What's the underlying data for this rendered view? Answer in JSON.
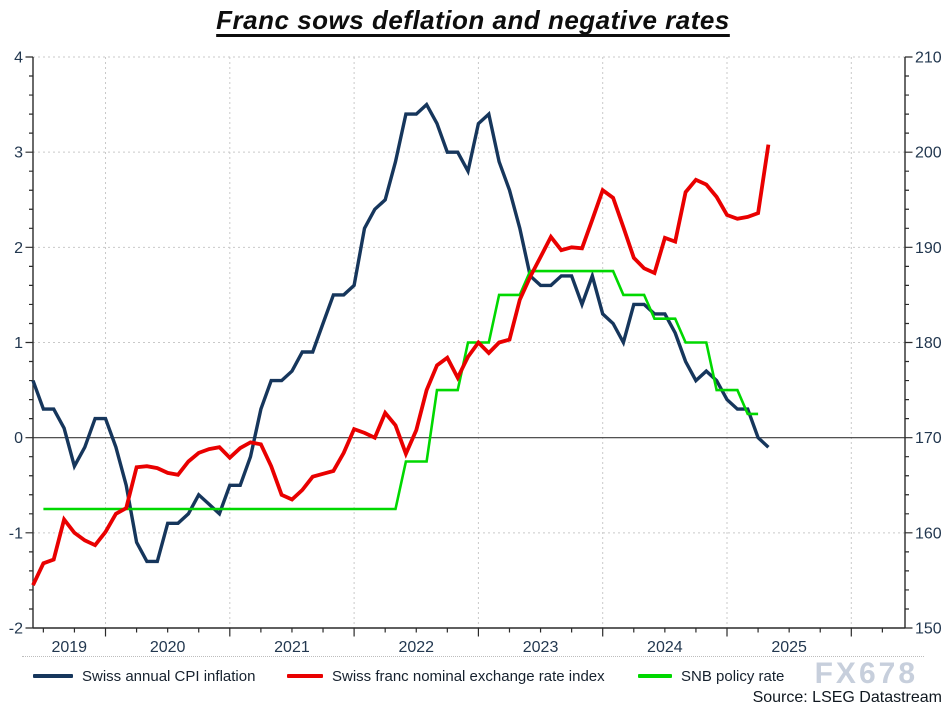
{
  "title": "Franc sows deflation and negative rates",
  "watermark": "FX678",
  "source_note": "Source: LSEG Datastream",
  "colors": {
    "cpi_line": "#16365c",
    "fx_line": "#e90000",
    "snb_line": "#00d800",
    "grid": "#c9c9c9",
    "axis": "#2a2a2a",
    "zero_line": "#3a3a3a",
    "tick_text": "#22374f",
    "watermark_text": "#c7cfdc"
  },
  "legend": [
    {
      "label": "Swiss annual CPI inflation",
      "color": "#16365c"
    },
    {
      "label": "Swiss franc nominal exchange rate index",
      "color": "#e90000"
    },
    {
      "label": "SNB policy rate",
      "color": "#00d800"
    }
  ],
  "chart_data": {
    "type": "line",
    "title": "Franc sows deflation and negative rates",
    "x_axis": {
      "year_labels": [
        "2019",
        "2020",
        "2021",
        "2022",
        "2023",
        "2024",
        "2025"
      ],
      "domain_note": "monthly data Jun 2019 - May 2025, axis extends to mid 2026",
      "grid": true
    },
    "left_axis": {
      "min": -2,
      "max": 4,
      "tick_labels": [
        "4",
        "3",
        "2",
        "1",
        "0",
        "-1",
        "-2"
      ],
      "minor_step": 0.2
    },
    "right_axis": {
      "min": 150,
      "max": 210,
      "tick_labels": [
        "210",
        "200",
        "190",
        "180",
        "170",
        "160",
        "150"
      ],
      "minor_step": 2
    },
    "months": [
      "2019-06",
      "2019-07",
      "2019-08",
      "2019-09",
      "2019-10",
      "2019-11",
      "2019-12",
      "2020-01",
      "2020-02",
      "2020-03",
      "2020-04",
      "2020-05",
      "2020-06",
      "2020-07",
      "2020-08",
      "2020-09",
      "2020-10",
      "2020-11",
      "2020-12",
      "2021-01",
      "2021-02",
      "2021-03",
      "2021-04",
      "2021-05",
      "2021-06",
      "2021-07",
      "2021-08",
      "2021-09",
      "2021-10",
      "2021-11",
      "2021-12",
      "2022-01",
      "2022-02",
      "2022-03",
      "2022-04",
      "2022-05",
      "2022-06",
      "2022-07",
      "2022-08",
      "2022-09",
      "2022-10",
      "2022-11",
      "2022-12",
      "2023-01",
      "2023-02",
      "2023-03",
      "2023-04",
      "2023-05",
      "2023-06",
      "2023-07",
      "2023-08",
      "2023-09",
      "2023-10",
      "2023-11",
      "2023-12",
      "2024-01",
      "2024-02",
      "2024-03",
      "2024-04",
      "2024-05",
      "2024-06",
      "2024-07",
      "2024-08",
      "2024-09",
      "2024-10",
      "2024-11",
      "2024-12",
      "2025-01",
      "2025-02",
      "2025-03",
      "2025-04",
      "2025-05"
    ],
    "series": [
      {
        "name": "Swiss annual CPI inflation",
        "axis": "left",
        "color": "#16365c",
        "width": 3.4,
        "values": [
          0.6,
          0.3,
          0.3,
          0.1,
          -0.3,
          -0.1,
          0.2,
          0.2,
          -0.1,
          -0.5,
          -1.1,
          -1.3,
          -1.3,
          -0.9,
          -0.9,
          -0.8,
          -0.6,
          -0.7,
          -0.8,
          -0.5,
          -0.5,
          -0.2,
          0.3,
          0.6,
          0.6,
          0.7,
          0.9,
          0.9,
          1.2,
          1.5,
          1.5,
          1.6,
          2.2,
          2.4,
          2.5,
          2.9,
          3.4,
          3.4,
          3.5,
          3.3,
          3.0,
          3.0,
          2.8,
          3.3,
          3.4,
          2.9,
          2.6,
          2.2,
          1.7,
          1.6,
          1.6,
          1.7,
          1.7,
          1.4,
          1.7,
          1.3,
          1.2,
          1.0,
          1.4,
          1.4,
          1.3,
          1.3,
          1.1,
          0.8,
          0.6,
          0.7,
          0.6,
          0.4,
          0.3,
          0.3,
          0.0,
          -0.1
        ]
      },
      {
        "name": "SNB policy rate",
        "axis": "left",
        "color": "#00d800",
        "width": 2.6,
        "values": [
          null,
          -0.75,
          -0.75,
          -0.75,
          -0.75,
          -0.75,
          -0.75,
          -0.75,
          -0.75,
          -0.75,
          -0.75,
          -0.75,
          -0.75,
          -0.75,
          -0.75,
          -0.75,
          -0.75,
          -0.75,
          -0.75,
          -0.75,
          -0.75,
          -0.75,
          -0.75,
          -0.75,
          -0.75,
          -0.75,
          -0.75,
          -0.75,
          -0.75,
          -0.75,
          -0.75,
          -0.75,
          -0.75,
          -0.75,
          -0.75,
          -0.75,
          -0.25,
          -0.25,
          -0.25,
          0.5,
          0.5,
          0.5,
          1.0,
          1.0,
          1.0,
          1.5,
          1.5,
          1.5,
          1.75,
          1.75,
          1.75,
          1.75,
          1.75,
          1.75,
          1.75,
          1.75,
          1.75,
          1.5,
          1.5,
          1.5,
          1.25,
          1.25,
          1.25,
          1.0,
          1.0,
          1.0,
          0.5,
          0.5,
          0.5,
          0.25,
          0.25,
          null
        ]
      },
      {
        "name": "Swiss franc nominal exchange rate index",
        "axis": "right",
        "color": "#e90000",
        "width": 3.8,
        "values": [
          154.5,
          156.8,
          157.2,
          161.4,
          160.0,
          159.2,
          158.7,
          160.1,
          162.0,
          162.6,
          166.9,
          167.0,
          166.8,
          166.3,
          166.1,
          167.5,
          168.4,
          168.8,
          169.0,
          167.9,
          168.9,
          169.5,
          169.3,
          167.0,
          164.0,
          163.5,
          164.5,
          165.9,
          166.2,
          166.5,
          168.4,
          170.9,
          170.5,
          170.0,
          172.6,
          171.3,
          168.3,
          170.8,
          175.0,
          177.6,
          178.4,
          176.3,
          178.5,
          180.0,
          178.9,
          180.0,
          180.3,
          184.5,
          186.9,
          189.0,
          191.1,
          189.7,
          190.0,
          189.9,
          192.9,
          196.0,
          195.2,
          192.1,
          188.9,
          187.8,
          187.3,
          191.0,
          190.6,
          195.8,
          197.1,
          196.6,
          195.3,
          193.4,
          193.0,
          193.2,
          193.6,
          200.8
        ]
      }
    ],
    "legend_position": "bottom"
  }
}
